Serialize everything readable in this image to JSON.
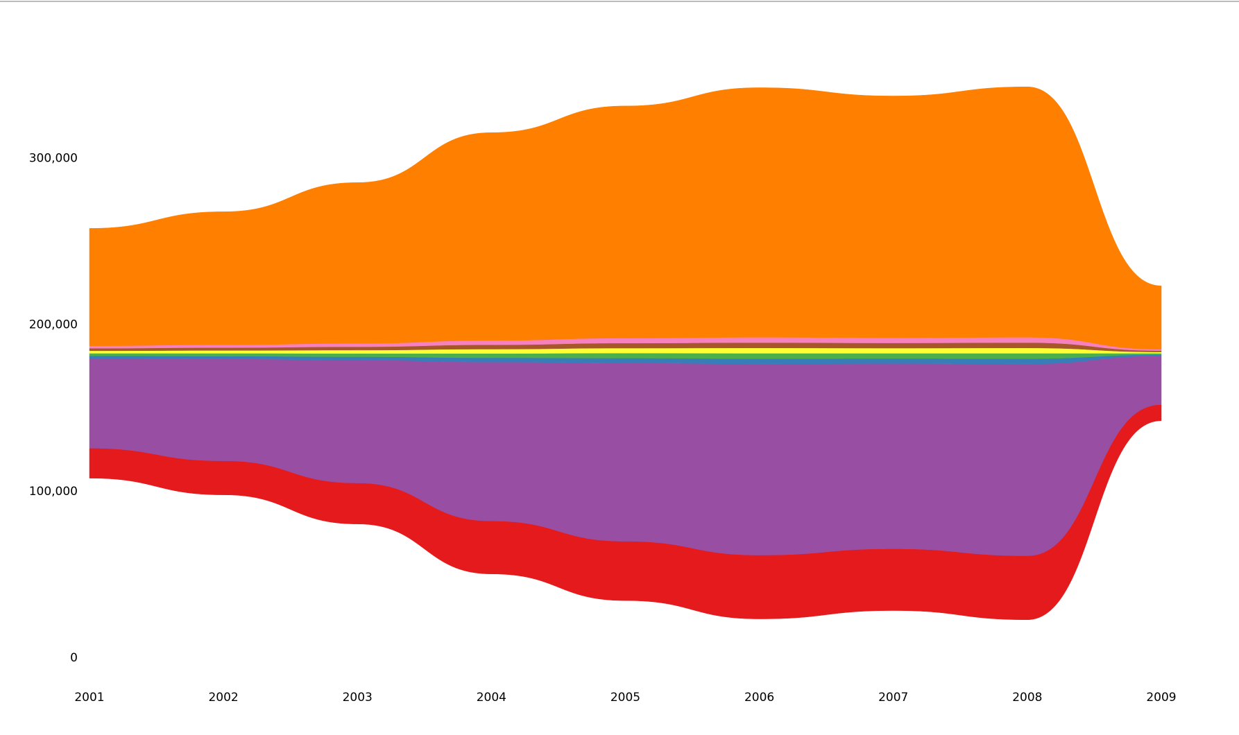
{
  "chart_data": {
    "type": "stream",
    "x": [
      2001,
      2002,
      2003,
      2004,
      2005,
      2006,
      2007,
      2008,
      2009
    ],
    "xlim": [
      2001,
      2009
    ],
    "xticks": [
      2001,
      2002,
      2003,
      2004,
      2005,
      2006,
      2007,
      2008,
      2009
    ],
    "ylim": [
      0,
      366000
    ],
    "yticks": [
      0,
      {
        "value": 100000,
        "label": "100,000"
      },
      {
        "value": 200000,
        "label": "200,000"
      },
      {
        "value": 300000,
        "label": "300,000"
      }
    ],
    "series": [
      {
        "color": "#e41a1c",
        "values": [
          18000,
          20400,
          24600,
          31800,
          35600,
          38300,
          37100,
          38400,
          9700
        ]
      },
      {
        "color": "#984ea3",
        "values": [
          54000,
          61200,
          73800,
          95400,
          107000,
          114800,
          111200,
          115200,
          29200
        ]
      },
      {
        "color": "#377eb8",
        "values": [
          1500,
          1700,
          2000,
          2600,
          3000,
          3200,
          3100,
          3200,
          800
        ]
      },
      {
        "color": "#4daf4a",
        "values": [
          1500,
          1700,
          2000,
          2600,
          3000,
          3200,
          3100,
          3200,
          800
        ]
      },
      {
        "color": "#ffff33",
        "values": [
          1500,
          1700,
          2000,
          2600,
          3000,
          3200,
          3100,
          3200,
          800
        ]
      },
      {
        "color": "#a65628",
        "values": [
          1500,
          1700,
          2000,
          2600,
          3000,
          3200,
          3100,
          3200,
          800
        ]
      },
      {
        "color": "#f781bf",
        "values": [
          1500,
          1700,
          2000,
          2600,
          3000,
          3200,
          3100,
          3200,
          800
        ]
      },
      {
        "color": "#ff7f00",
        "values": [
          70500,
          79900,
          96600,
          124800,
          139400,
          149900,
          145200,
          150400,
          38100
        ]
      }
    ]
  }
}
